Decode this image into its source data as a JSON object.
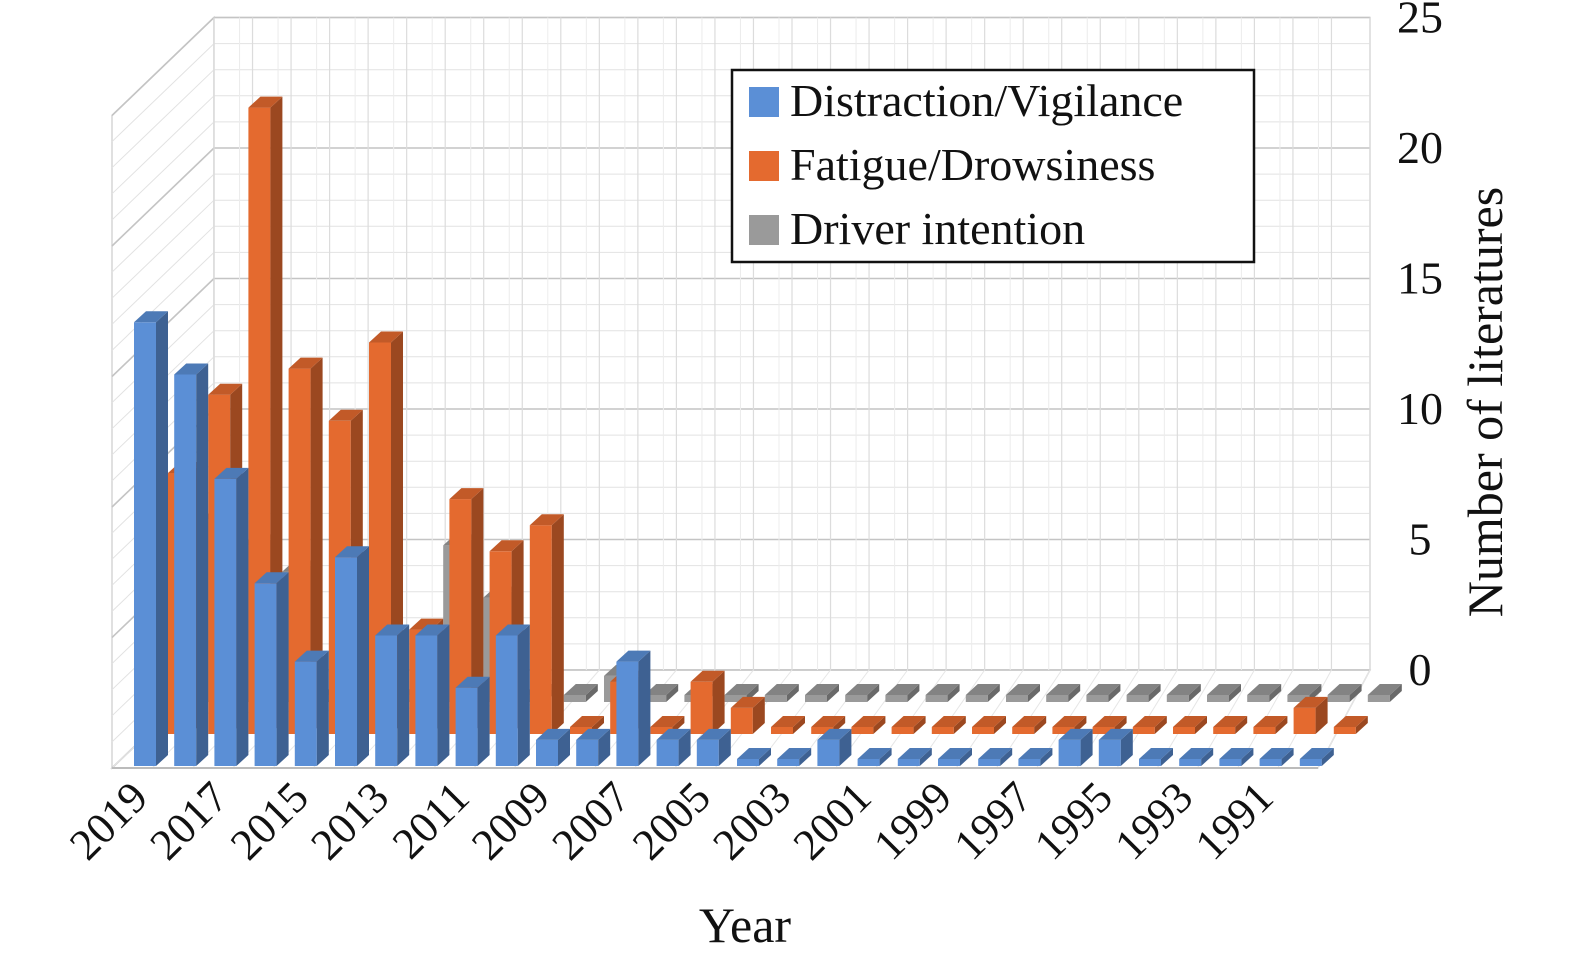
{
  "chart_data": {
    "type": "bar",
    "subtype": "3d-clustered-column",
    "title": "",
    "xlabel": "Year",
    "ylabel": "Number of literatures",
    "ylim": [
      0,
      25
    ],
    "yticks": [
      "0",
      "5",
      "10",
      "15",
      "20",
      "25"
    ],
    "grid": true,
    "legend_position": "top-right",
    "categories": [
      "2019",
      "2018",
      "2017",
      "2016",
      "2015",
      "2014",
      "2013",
      "2012",
      "2011",
      "2010",
      "2009",
      "2008",
      "2007",
      "2006",
      "2005",
      "2004",
      "2003",
      "2002",
      "2001",
      "2000",
      "1999",
      "1998",
      "1997",
      "1996",
      "1995",
      "1994",
      "1993",
      "1992",
      "1991",
      "1990"
    ],
    "xtick_labels": [
      "2019",
      "2017",
      "2015",
      "2013",
      "2011",
      "2009",
      "2007",
      "2005",
      "2003",
      "2001",
      "1999",
      "1997",
      "1995",
      "1993",
      "1991"
    ],
    "series": [
      {
        "name": "Distraction/Vigilance",
        "color": "#5b8fd6",
        "values": [
          17,
          15,
          11,
          7,
          4,
          8,
          5,
          5,
          3,
          5,
          1,
          1,
          4,
          1,
          1,
          0,
          0,
          1,
          0,
          0,
          0,
          0,
          0,
          1,
          1,
          0,
          0,
          0,
          0,
          0
        ]
      },
      {
        "name": "Fatigue/Drowsiness",
        "color": "#e46a2f",
        "values": [
          10,
          13,
          24,
          14,
          12,
          15,
          4,
          9,
          7,
          8,
          0,
          2,
          0,
          2,
          1,
          0,
          0,
          0,
          0,
          0,
          0,
          0,
          0,
          0,
          0,
          0,
          0,
          0,
          1,
          0
        ]
      },
      {
        "name": "Driver intention",
        "color": "#9a9a9a",
        "values": [
          7,
          6,
          5,
          0,
          0,
          0,
          6,
          4,
          0,
          0,
          1,
          0,
          0,
          0,
          0,
          0,
          0,
          0,
          0,
          0,
          0,
          0,
          0,
          0,
          0,
          0,
          0,
          0,
          0,
          0
        ]
      }
    ]
  }
}
